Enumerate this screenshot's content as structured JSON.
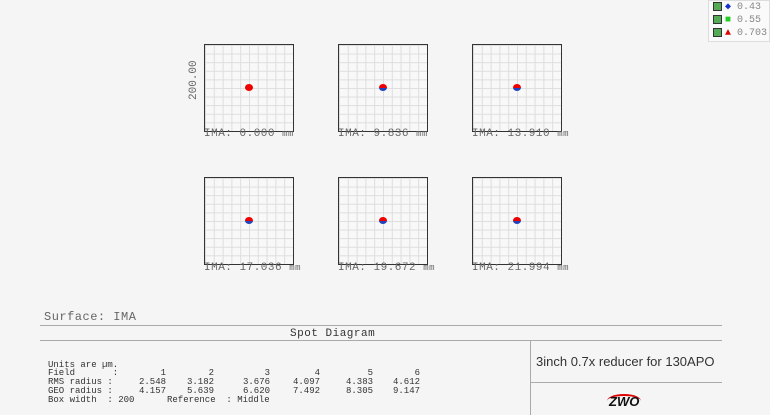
{
  "legend": [
    {
      "icon": "blue-diamond",
      "color": "#1133cc",
      "label": "0.43"
    },
    {
      "icon": "green-square",
      "color": "#22cc22",
      "label": "0.55"
    },
    {
      "icon": "red-triangle",
      "color": "#dd0000",
      "label": "0.703"
    }
  ],
  "y_axis_label": "200.00",
  "unit": "mm",
  "plots": [
    {
      "label": "IMA: 0.000"
    },
    {
      "label": "IMA: 9.836"
    },
    {
      "label": "IMA: 13.910"
    },
    {
      "label": "IMA: 17.036"
    },
    {
      "label": "IMA: 19.672"
    },
    {
      "label": "IMA: 21.994"
    }
  ],
  "surface": "Surface: IMA",
  "title": "Spot Diagram",
  "table": {
    "units": "Units are µm.",
    "field_label": "Field       :",
    "fields": [
      "1",
      "2",
      "3",
      "4",
      "5",
      "6"
    ],
    "rms_label": "RMS radius :",
    "rms": [
      "2.548",
      "3.182",
      "3.676",
      "4.097",
      "4.383",
      "4.612"
    ],
    "geo_label": "GEO radius :",
    "geo": [
      "4.157",
      "5.639",
      "6.620",
      "7.492",
      "8.305",
      "9.147"
    ],
    "box_width": "Box width  : 200",
    "reference": "Reference  : Middle"
  },
  "caption": "3inch 0.7x reducer for 130APO",
  "logo": "ZWO"
}
